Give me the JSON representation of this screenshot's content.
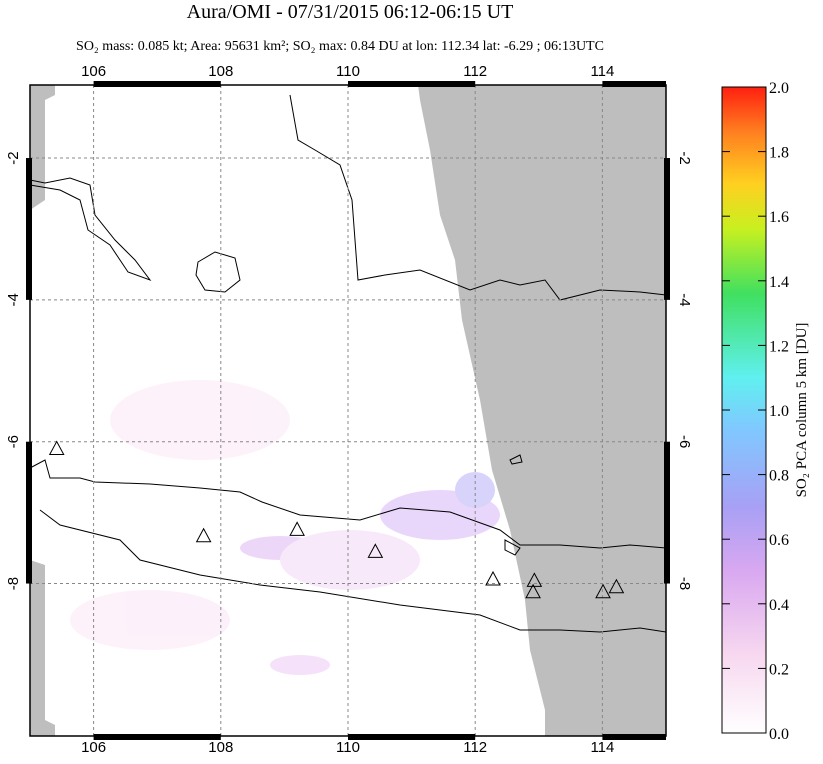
{
  "map": {
    "title": "Aura/OMI - 07/31/2015 06:12-06:15 UT",
    "subtitle": "SO₂ mass: 0.085 kt; Area: 95631 km²; SO₂ max: 0.84 DU at lon: 112.34 lat: -6.29 ; 06:13UTC",
    "xlim": [
      105,
      115
    ],
    "ylim": [
      -10.15,
      -0.97
    ],
    "xticks": [
      106,
      108,
      110,
      112,
      114
    ],
    "yticks": [
      -2,
      -4,
      -6,
      -8
    ],
    "grid": true,
    "volcanoes": [
      {
        "lon": 105.42,
        "lat": -6.11
      },
      {
        "lon": 107.73,
        "lat": -7.34
      },
      {
        "lon": 109.2,
        "lat": -7.25
      },
      {
        "lon": 110.43,
        "lat": -7.56
      },
      {
        "lon": 112.28,
        "lat": -7.95
      },
      {
        "lon": 112.93,
        "lat": -7.97
      },
      {
        "lon": 112.91,
        "lat": -8.13
      },
      {
        "lon": 114.01,
        "lat": -8.13
      },
      {
        "lon": 114.22,
        "lat": -8.06
      }
    ],
    "colorbar": {
      "label": "SO₂ PCA column 5 km [DU]",
      "lim": [
        0,
        2
      ],
      "ticks": [
        {
          "value": 0,
          "label": "0.0"
        },
        {
          "value": 0.2,
          "label": "0.2"
        },
        {
          "value": 0.4,
          "label": "0.4"
        },
        {
          "value": 0.6,
          "label": "0.6"
        },
        {
          "value": 0.8,
          "label": "0.8"
        },
        {
          "value": 1,
          "label": "1.0"
        },
        {
          "value": 1.2,
          "label": "1.2"
        },
        {
          "value": 1.4,
          "label": "1.4"
        },
        {
          "value": 1.6,
          "label": "1.6"
        },
        {
          "value": 1.8,
          "label": "1.8"
        },
        {
          "value": 2,
          "label": "2.0"
        }
      ]
    }
  }
}
